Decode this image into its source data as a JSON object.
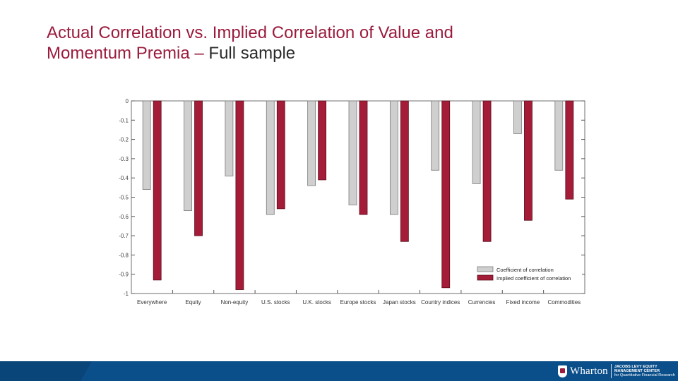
{
  "slide": {
    "title_line1": "Actual Correlation vs. Implied Correlation of Value and",
    "title_line2_accent": "Momentum Premia –",
    "title_line2_rest": " Full sample"
  },
  "footer": {
    "logo_wordmark": "Wharton",
    "center_line1": "JACOBS LEVY EQUITY",
    "center_line2": "MANAGEMENT CENTER",
    "center_line3": "for Quantitative Financial Research"
  },
  "colors": {
    "accent": "#9b1b3d",
    "actual": "#cfcfcf",
    "implied": "#a51c38",
    "footer": "#0b4f8a"
  },
  "chart_data": {
    "type": "bar",
    "title": "",
    "xlabel": "",
    "ylabel": "",
    "ylim": [
      -1,
      0
    ],
    "yticks": [
      "0",
      "-0.1",
      "-0.2",
      "-0.3",
      "-0.4",
      "-0.5",
      "-0.6",
      "-0.7",
      "-0.8",
      "-0.9",
      "-1"
    ],
    "categories": [
      "Everywhere",
      "Equity",
      "Non-equity",
      "U.S. stocks",
      "U.K. stocks",
      "Europe stocks",
      "Japan stocks",
      "Country indices",
      "Currencies",
      "Fixed income",
      "Commodities"
    ],
    "series": [
      {
        "name": "Coefficient of correlation",
        "values": [
          -0.46,
          -0.57,
          -0.39,
          -0.59,
          -0.44,
          -0.54,
          -0.59,
          -0.36,
          -0.43,
          -0.17,
          -0.36
        ]
      },
      {
        "name": "Implied coefficient of correlation",
        "values": [
          -0.93,
          -0.7,
          -0.98,
          -0.56,
          -0.41,
          -0.59,
          -0.73,
          -0.97,
          -0.73,
          -0.62,
          -0.51
        ]
      }
    ],
    "legend_position": "bottom-right",
    "grid": false
  }
}
